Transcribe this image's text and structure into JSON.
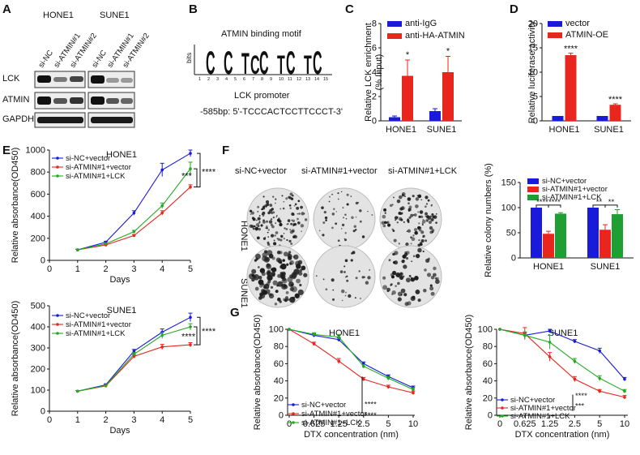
{
  "panel_labels": {
    "A": "A",
    "B": "B",
    "C": "C",
    "D": "D",
    "E": "E",
    "F": "F",
    "G": "G"
  },
  "panel_a": {
    "cell_lines": [
      "HONE1",
      "SUNE1"
    ],
    "lanes_hone1": [
      "si-NC",
      "si-ATMIN#1",
      "si-ATMIN#2"
    ],
    "lanes_sune1": [
      "si-NC",
      "si-ATMIN#1",
      "si-ATMIN#2"
    ],
    "rows": [
      "LCK",
      "ATMIN",
      "GAPDH"
    ]
  },
  "panel_b": {
    "title": "ATMIN binding motif",
    "bits_label": "bits",
    "motif_letters": [
      "C",
      "C",
      "T",
      "C",
      "C",
      "T",
      "C",
      "T",
      "C"
    ],
    "positions": [
      "1",
      "2",
      "3",
      "4",
      "5",
      "6",
      "7",
      "8",
      "9",
      "10",
      "11",
      "12",
      "13",
      "14",
      "15"
    ],
    "promoter_label": "LCK promoter",
    "sequence": "-585bp: 5'-TCCCACTCCTTCCCT-3'"
  },
  "chart_data": [
    {
      "id": "C",
      "type": "bar",
      "categories": [
        "HONE1",
        "SUNE1"
      ],
      "series": [
        {
          "name": "anti-IgG",
          "color": "#1a1adb",
          "values": [
            0.3,
            0.8
          ],
          "errors": [
            0.1,
            0.2
          ]
        },
        {
          "name": "anti-HA-ATMIN",
          "color": "#e8261d",
          "values": [
            3.7,
            4.0
          ],
          "errors": [
            1.3,
            1.3
          ]
        }
      ],
      "ylabel": "Relative LCK enrichment\n(% Input)",
      "ylim": [
        0,
        8
      ],
      "yticks": [
        "0",
        "2",
        "4",
        "6",
        "8"
      ],
      "significance": [
        "*",
        "*"
      ]
    },
    {
      "id": "D",
      "type": "bar",
      "categories": [
        "HONE1",
        "SUNE1"
      ],
      "series": [
        {
          "name": "vector",
          "color": "#1a1adb",
          "values": [
            1.0,
            1.0
          ],
          "errors": [
            0,
            0
          ]
        },
        {
          "name": "ATMIN-OE",
          "color": "#e8261d",
          "values": [
            13.5,
            3.3
          ],
          "errors": [
            0.4,
            0.2
          ]
        }
      ],
      "ylabel": "Relative luciferase activity",
      "ylim": [
        0,
        20
      ],
      "yticks": [
        "0",
        "5",
        "10",
        "15",
        "20"
      ],
      "significance": [
        "****",
        "****"
      ]
    },
    {
      "id": "E1",
      "type": "line",
      "title": "HONE1",
      "x": [
        1,
        2,
        3,
        4,
        5
      ],
      "series": [
        {
          "name": "si-NC+vector",
          "color": "#1a1adb",
          "values": [
            95,
            165,
            430,
            820,
            970
          ],
          "errors": [
            5,
            8,
            20,
            60,
            30
          ]
        },
        {
          "name": "si-ATMIN#1+vector",
          "color": "#e8261d",
          "values": [
            95,
            140,
            225,
            430,
            665
          ],
          "errors": [
            5,
            5,
            10,
            20,
            20
          ]
        },
        {
          "name": "si-ATMIN#1+LCK",
          "color": "#22aa22",
          "values": [
            95,
            150,
            260,
            495,
            830
          ],
          "errors": [
            5,
            5,
            12,
            25,
            60
          ]
        }
      ],
      "xlabel": "Days",
      "ylabel": "Relative absorbance(OD450)",
      "xlim": [
        0,
        5
      ],
      "ylim": [
        0,
        1000
      ],
      "xticks": [
        "0",
        "1",
        "2",
        "3",
        "4",
        "5"
      ],
      "yticks": [
        "0",
        "200",
        "400",
        "600",
        "800",
        "1000"
      ],
      "significance": [
        "***",
        "****"
      ]
    },
    {
      "id": "E2",
      "type": "line",
      "title": "SUNE1",
      "x": [
        1,
        2,
        3,
        4,
        5
      ],
      "series": [
        {
          "name": "si-NC+vector",
          "color": "#1a1adb",
          "values": [
            95,
            125,
            285,
            375,
            445
          ],
          "errors": [
            3,
            5,
            8,
            15,
            20
          ]
        },
        {
          "name": "si-ATMIN#1+vector",
          "color": "#e8261d",
          "values": [
            95,
            120,
            260,
            305,
            315
          ],
          "errors": [
            3,
            5,
            8,
            12,
            10
          ]
        },
        {
          "name": "si-ATMIN#1+LCK",
          "color": "#22aa22",
          "values": [
            95,
            122,
            270,
            360,
            400
          ],
          "errors": [
            3,
            5,
            8,
            15,
            15
          ]
        }
      ],
      "xlabel": "Days",
      "ylabel": "Relative absorbance(OD450)",
      "xlim": [
        0,
        5
      ],
      "ylim": [
        0,
        500
      ],
      "xticks": [
        "0",
        "1",
        "2",
        "3",
        "4",
        "5"
      ],
      "yticks": [
        "0",
        "100",
        "200",
        "300",
        "400",
        "500"
      ],
      "significance": [
        "****",
        "****"
      ]
    },
    {
      "id": "F",
      "type": "bar",
      "categories": [
        "HONE1",
        "SUNE1"
      ],
      "series": [
        {
          "name": "si-NC+vector",
          "color": "#1a1adb",
          "values": [
            100,
            100
          ],
          "errors": [
            0,
            0
          ]
        },
        {
          "name": "si-ATMIN#1+vector",
          "color": "#e8261d",
          "values": [
            48,
            56
          ],
          "errors": [
            5,
            10
          ]
        },
        {
          "name": "si-ATMIN#1+LCK",
          "color": "#1f9e33",
          "values": [
            88,
            87
          ],
          "errors": [
            2,
            9
          ]
        }
      ],
      "ylabel": "Relative colony numbers (%)",
      "ylim": [
        0,
        150
      ],
      "yticks": [
        "0",
        "50",
        "100",
        "150"
      ],
      "significance": [
        "****",
        "****",
        "**",
        "**"
      ]
    },
    {
      "id": "G1",
      "type": "line",
      "title": "HONE1",
      "x": [
        "0",
        "0.625",
        "1.25",
        "2.5",
        "5",
        "10"
      ],
      "series": [
        {
          "name": "si-NC+vector",
          "color": "#1a1adb",
          "values": [
            100,
            93,
            88,
            60,
            45,
            32
          ],
          "errors": [
            0,
            2,
            2,
            2,
            2,
            2
          ]
        },
        {
          "name": "si-ATMIN#1+vector",
          "color": "#e8261d",
          "values": [
            100,
            83,
            63,
            42,
            33,
            26
          ],
          "errors": [
            0,
            2,
            3,
            2,
            2,
            2
          ]
        },
        {
          "name": "si-ATMIN#1+LCK",
          "color": "#22aa22",
          "values": [
            100,
            94,
            91,
            57,
            43,
            30
          ],
          "errors": [
            0,
            2,
            3,
            2,
            2,
            2
          ]
        }
      ],
      "xlabel": "DTX concentration (nm)",
      "ylabel": "Relative absorbance(OD450)",
      "ylim": [
        0,
        100
      ],
      "yticks": [
        "0",
        "20",
        "40",
        "60",
        "80",
        "100"
      ],
      "significance": [
        "****",
        "****"
      ]
    },
    {
      "id": "G2",
      "type": "line",
      "title": "SUNE1",
      "x": [
        "0",
        "0.625",
        "1.25",
        "2.5",
        "5",
        "10"
      ],
      "series": [
        {
          "name": "si-NC+vector",
          "color": "#1a1adb",
          "values": [
            100,
            93,
            98,
            86,
            75,
            42
          ],
          "errors": [
            0,
            3,
            2,
            2,
            3,
            2
          ]
        },
        {
          "name": "si-ATMIN#1+vector",
          "color": "#e8261d",
          "values": [
            100,
            95,
            68,
            42,
            28,
            21
          ],
          "errors": [
            0,
            7,
            5,
            3,
            2,
            2
          ]
        },
        {
          "name": "si-ATMIN#1+LCK",
          "color": "#22aa22",
          "values": [
            100,
            93,
            85,
            63,
            43,
            28
          ],
          "errors": [
            0,
            4,
            8,
            3,
            3,
            2
          ]
        }
      ],
      "xlabel": "DTX concentration (nm)",
      "ylabel": "Relative absorbance(OD450)",
      "ylim": [
        0,
        100
      ],
      "yticks": [
        "0",
        "20",
        "40",
        "60",
        "80",
        "100"
      ],
      "significance": [
        "****",
        "***"
      ]
    }
  ],
  "panel_f_images": {
    "col_labels": [
      "si-NC+vector",
      "si-ATMIN#1+vector",
      "si-ATMIN#1+LCK"
    ],
    "row_labels": [
      "HONE1",
      "SUNE1"
    ]
  }
}
